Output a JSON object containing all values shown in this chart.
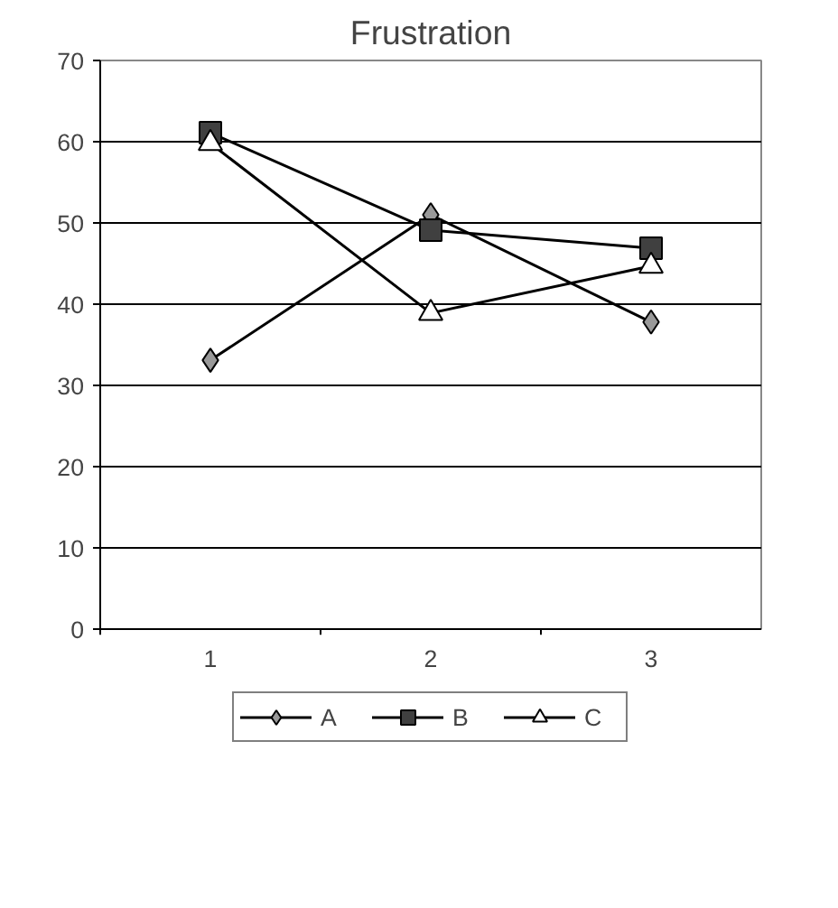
{
  "chart_data": {
    "type": "line",
    "title": "Frustration",
    "categories": [
      "1",
      "2",
      "3"
    ],
    "series": [
      {
        "name": "A",
        "color": "#999999",
        "marker": "diamond",
        "values": [
          33.1,
          51,
          37.8
        ]
      },
      {
        "name": "B",
        "color": "#404040",
        "marker": "square",
        "values": [
          61.1,
          49.1,
          46.9
        ]
      },
      {
        "name": "C",
        "color": "#ffffff",
        "marker": "triangle",
        "values": [
          59.8,
          38.9,
          44.7
        ]
      }
    ],
    "ylim": [
      0,
      70
    ],
    "yticks": [
      0,
      10,
      20,
      30,
      40,
      50,
      60,
      70
    ],
    "grid": "y",
    "legend": "bottom",
    "line_style": "solid"
  }
}
